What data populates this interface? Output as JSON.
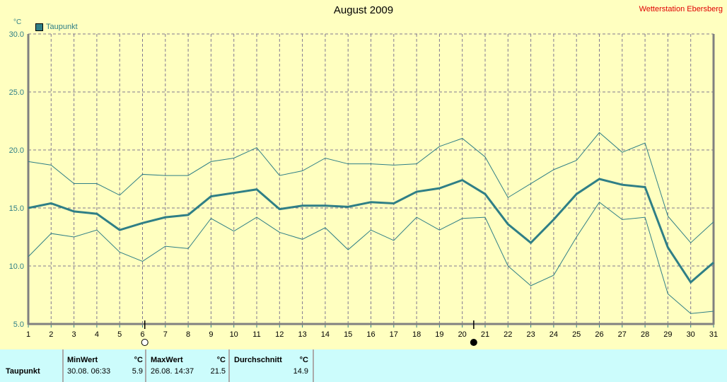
{
  "header": {
    "title": "August 2009",
    "station": "Wetterstation Ebersberg",
    "unit": "°C"
  },
  "legend": {
    "label": "Taupunkt",
    "color": "#2f7f86"
  },
  "chart_data": {
    "type": "line",
    "title": "August 2009",
    "ylabel": "°C",
    "ylim": [
      5,
      30
    ],
    "yticks": [
      "5.0",
      "10.0",
      "15.0",
      "20.0",
      "25.0",
      "30.0"
    ],
    "x": [
      1,
      2,
      3,
      4,
      5,
      6,
      7,
      8,
      9,
      10,
      11,
      12,
      13,
      14,
      15,
      16,
      17,
      18,
      19,
      20,
      21,
      22,
      23,
      24,
      25,
      26,
      27,
      28,
      29,
      30,
      31
    ],
    "series": [
      {
        "name": "Taupunkt",
        "values": [
          15.0,
          15.4,
          14.7,
          14.5,
          13.1,
          13.7,
          14.2,
          14.4,
          16.0,
          16.3,
          16.6,
          14.9,
          15.2,
          15.2,
          15.1,
          15.5,
          15.4,
          16.4,
          16.7,
          17.4,
          16.2,
          13.6,
          12.0,
          14.0,
          16.2,
          17.5,
          17.0,
          16.8,
          11.6,
          8.6,
          10.3
        ]
      },
      {
        "name": "Taupunkt Max",
        "values": [
          19.0,
          18.7,
          17.1,
          17.1,
          16.1,
          17.9,
          17.8,
          17.8,
          19.0,
          19.3,
          20.2,
          17.8,
          18.2,
          19.3,
          18.8,
          18.8,
          18.7,
          18.8,
          20.3,
          21.0,
          19.4,
          15.9,
          17.1,
          18.3,
          19.1,
          21.5,
          19.8,
          20.6,
          14.3,
          12.0,
          13.8
        ]
      },
      {
        "name": "Taupunkt Min",
        "values": [
          10.8,
          12.8,
          12.5,
          13.1,
          11.2,
          10.4,
          11.7,
          11.5,
          14.1,
          13.0,
          14.2,
          12.9,
          12.3,
          13.3,
          11.4,
          13.1,
          12.2,
          14.2,
          13.1,
          14.1,
          14.2,
          10.0,
          8.3,
          9.2,
          12.5,
          15.5,
          14.0,
          14.2,
          7.6,
          5.9,
          6.1
        ]
      }
    ],
    "moon_phases": [
      {
        "day": 6.1,
        "phase": "full"
      },
      {
        "day": 20.5,
        "phase": "new"
      }
    ]
  },
  "table": {
    "row_label": "Taupunkt",
    "min": {
      "header": "MinWert",
      "unit": "°C",
      "time": "30.08.  06:33",
      "value": "5.9"
    },
    "max": {
      "header": "MaxWert",
      "unit": "°C",
      "time": "26.08.  14:37",
      "value": "21.5"
    },
    "avg": {
      "header": "Durchschnitt",
      "unit": "°C",
      "value": "14.9"
    }
  }
}
